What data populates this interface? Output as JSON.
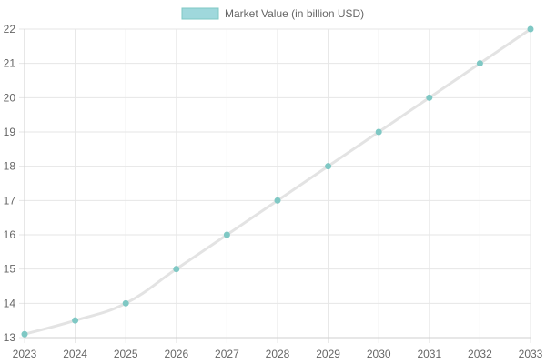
{
  "chart_data": {
    "type": "line",
    "legend": {
      "label": "Market Value (in billion USD)",
      "position": "top"
    },
    "x": [
      "2023",
      "2024",
      "2025",
      "2026",
      "2027",
      "2028",
      "2029",
      "2030",
      "2031",
      "2032",
      "2033"
    ],
    "series": [
      {
        "name": "Market Value (in billion USD)",
        "values": [
          13.1,
          13.5,
          14,
          15,
          16,
          17,
          18,
          19,
          20,
          21,
          22
        ]
      }
    ],
    "ylim": [
      13,
      22
    ],
    "yticks": [
      13,
      14,
      15,
      16,
      17,
      18,
      19,
      20,
      21,
      22
    ],
    "grid": true
  },
  "colors": {
    "line": "#e3e3e3",
    "point": "#7fc8c4",
    "legend_fill": "#9fd8dc",
    "legend_border": "#7fc8c4",
    "grid": "#e6e6e6",
    "axis": "#cfcfcf"
  }
}
